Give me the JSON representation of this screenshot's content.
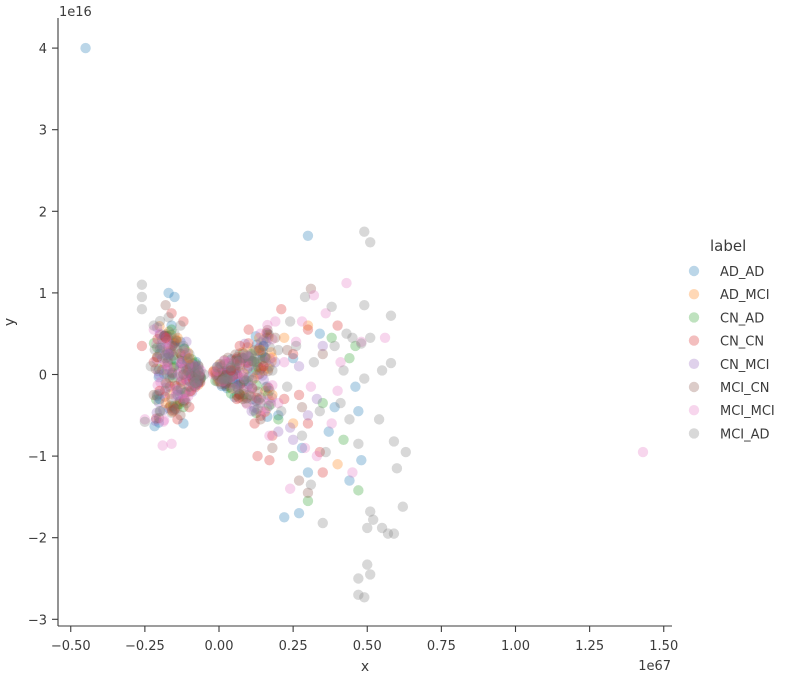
{
  "chart_data": {
    "type": "scatter",
    "xlabel": "x",
    "ylabel": "y",
    "x_offset_label": "1e67",
    "y_offset_label": "1e16",
    "xlim": [
      -0.55,
      1.52
    ],
    "ylim": [
      -3.05,
      4.3
    ],
    "x_ticks": [
      -0.5,
      -0.25,
      0.0,
      0.25,
      0.5,
      0.75,
      1.0,
      1.25,
      1.5
    ],
    "x_tick_labels": [
      "−0.50",
      "−0.25",
      "0.00",
      "0.25",
      "0.50",
      "0.75",
      "1.00",
      "1.25",
      "1.50"
    ],
    "y_ticks": [
      -3,
      -2,
      -1,
      0,
      1,
      2,
      3,
      4
    ],
    "y_tick_labels": [
      "−3",
      "−2",
      "−1",
      "0",
      "1",
      "2",
      "3",
      "4"
    ],
    "grid": false,
    "legend_title": "label",
    "legend_placement": "right",
    "marker_alpha": 0.3,
    "series": [
      {
        "name": "AD_AD",
        "color": "#1f77b4",
        "points": [
          [
            -0.45,
            4.0
          ],
          [
            0.3,
            1.7
          ],
          [
            0.48,
            -1.05
          ],
          [
            0.47,
            -0.45
          ],
          [
            0.27,
            -1.7
          ],
          [
            0.22,
            -1.75
          ],
          [
            -0.15,
            0.95
          ],
          [
            -0.17,
            1.0
          ],
          [
            0.46,
            -0.15
          ],
          [
            0.28,
            -0.9
          ],
          [
            0.37,
            -0.7
          ],
          [
            -0.13,
            0.4
          ],
          [
            0.34,
            0.5
          ],
          [
            0.44,
            -1.3
          ],
          [
            0.2,
            -0.5
          ],
          [
            -0.12,
            -0.6
          ],
          [
            0.25,
            0.2
          ],
          [
            -0.16,
            0.6
          ],
          [
            0.39,
            -0.4
          ],
          [
            0.15,
            0.35
          ],
          [
            -0.2,
            -0.3
          ],
          [
            0.3,
            -1.2
          ]
        ]
      },
      {
        "name": "AD_MCI",
        "color": "#ff7f0e",
        "points": [
          [
            -0.14,
            0.45
          ],
          [
            0.14,
            0.3
          ],
          [
            0.25,
            -0.6
          ],
          [
            -0.18,
            -0.35
          ],
          [
            0.3,
            0.6
          ],
          [
            0.4,
            -1.1
          ],
          [
            -0.1,
            0.2
          ],
          [
            0.18,
            -0.25
          ],
          [
            0.22,
            0.45
          ]
        ]
      },
      {
        "name": "CN_AD",
        "color": "#2ca02c",
        "points": [
          [
            0.47,
            -1.42
          ],
          [
            0.46,
            0.35
          ],
          [
            0.3,
            -1.55
          ],
          [
            0.25,
            -1.0
          ],
          [
            0.38,
            0.45
          ],
          [
            0.35,
            -0.35
          ],
          [
            0.42,
            -0.8
          ],
          [
            -0.16,
            0.55
          ],
          [
            0.2,
            -0.55
          ],
          [
            0.44,
            0.2
          ],
          [
            -0.12,
            -0.4
          ]
        ]
      },
      {
        "name": "CN_CN",
        "color": "#d62728",
        "points": [
          [
            -0.26,
            0.35
          ],
          [
            0.21,
            0.8
          ],
          [
            0.3,
            0.55
          ],
          [
            0.34,
            -0.95
          ],
          [
            -0.16,
            0.75
          ],
          [
            -0.14,
            -0.55
          ],
          [
            0.1,
            0.55
          ],
          [
            0.12,
            -0.6
          ],
          [
            0.18,
            -0.75
          ],
          [
            0.07,
            0.35
          ],
          [
            0.25,
            0.25
          ],
          [
            -0.2,
            -0.2
          ],
          [
            0.17,
            -1.05
          ],
          [
            0.4,
            0.6
          ],
          [
            0.13,
            -1.0
          ],
          [
            -0.12,
            0.65
          ],
          [
            0.22,
            -0.3
          ],
          [
            0.06,
            -0.3
          ],
          [
            -0.18,
            0.45
          ],
          [
            0.27,
            -0.25
          ],
          [
            0.35,
            -1.2
          ],
          [
            0.15,
            0.1
          ],
          [
            -0.22,
            0.15
          ],
          [
            -0.1,
            -0.4
          ],
          [
            0.3,
            -0.6
          ],
          [
            0.04,
            0.05
          ]
        ]
      },
      {
        "name": "CN_MCI",
        "color": "#9467bd",
        "points": [
          [
            -0.17,
            0.25
          ],
          [
            0.2,
            -0.7
          ],
          [
            0.27,
            0.1
          ],
          [
            0.33,
            -0.3
          ],
          [
            -0.14,
            -0.25
          ],
          [
            0.16,
            0.4
          ],
          [
            0.24,
            -0.65
          ],
          [
            -0.11,
            0.4
          ],
          [
            0.35,
            0.35
          ],
          [
            0.3,
            -0.5
          ],
          [
            -0.2,
            0.5
          ],
          [
            0.11,
            -0.45
          ],
          [
            0.19,
            0.15
          ],
          [
            0.25,
            -0.8
          ]
        ]
      },
      {
        "name": "MCI_CN",
        "color": "#8c564b",
        "points": [
          [
            0.31,
            1.05
          ],
          [
            0.27,
            -1.3
          ],
          [
            -0.18,
            0.85
          ],
          [
            0.18,
            -0.9
          ],
          [
            0.23,
            0.3
          ],
          [
            -0.13,
            -0.5
          ],
          [
            0.35,
            0.25
          ],
          [
            0.28,
            -0.4
          ],
          [
            0.14,
            -0.55
          ],
          [
            -0.22,
            -0.25
          ],
          [
            0.19,
            0.45
          ],
          [
            0.08,
            -0.3
          ],
          [
            -0.15,
            0.35
          ],
          [
            0.3,
            -1.45
          ]
        ]
      },
      {
        "name": "MCI_MCI",
        "color": "#e377c2",
        "points": [
          [
            1.43,
            -0.95
          ],
          [
            0.43,
            1.12
          ],
          [
            0.32,
            0.97
          ],
          [
            0.29,
            -0.9
          ],
          [
            0.24,
            -1.4
          ],
          [
            0.48,
            0.4
          ],
          [
            -0.19,
            -0.87
          ],
          [
            -0.16,
            -0.85
          ],
          [
            0.14,
            0.5
          ],
          [
            0.2,
            -0.35
          ],
          [
            0.38,
            -0.6
          ],
          [
            0.45,
            -1.2
          ],
          [
            0.56,
            0.45
          ],
          [
            0.09,
            0.25
          ],
          [
            0.26,
            0.4
          ],
          [
            -0.22,
            0.55
          ],
          [
            0.41,
            0.15
          ],
          [
            -0.12,
            -0.3
          ],
          [
            0.33,
            -1.0
          ],
          [
            0.22,
            0.15
          ],
          [
            0.36,
            0.75
          ],
          [
            0.17,
            -0.75
          ],
          [
            -0.25,
            -0.55
          ],
          [
            0.11,
            -0.15
          ],
          [
            0.28,
            0.65
          ],
          [
            0.4,
            -0.2
          ],
          [
            0.31,
            -0.15
          ],
          [
            0.19,
            0.65
          ]
        ]
      },
      {
        "name": "MCI_AD",
        "color": "#7f7f7f",
        "points": [
          [
            0.49,
            1.75
          ],
          [
            0.51,
            1.62
          ],
          [
            0.47,
            -2.5
          ],
          [
            0.47,
            -2.7
          ],
          [
            0.49,
            -2.73
          ],
          [
            0.51,
            -2.45
          ],
          [
            0.5,
            -2.33
          ],
          [
            0.5,
            -1.88
          ],
          [
            0.51,
            -1.68
          ],
          [
            0.52,
            -1.78
          ],
          [
            0.55,
            -1.88
          ],
          [
            0.57,
            -1.95
          ],
          [
            0.59,
            -1.95
          ],
          [
            0.62,
            -1.62
          ],
          [
            0.6,
            -1.15
          ],
          [
            0.63,
            -0.95
          ],
          [
            0.59,
            -0.82
          ],
          [
            0.54,
            -0.55
          ],
          [
            0.55,
            0.05
          ],
          [
            0.49,
            0.85
          ],
          [
            0.58,
            0.72
          ],
          [
            0.58,
            0.14
          ],
          [
            0.51,
            0.45
          ],
          [
            0.45,
            0.45
          ],
          [
            0.48,
            0.38
          ],
          [
            0.42,
            0.05
          ],
          [
            0.49,
            -0.05
          ],
          [
            0.47,
            -0.85
          ],
          [
            0.44,
            -0.55
          ],
          [
            0.38,
            0.83
          ],
          [
            0.35,
            -1.82
          ],
          [
            0.31,
            -1.35
          ],
          [
            0.29,
            0.95
          ],
          [
            0.24,
            0.65
          ],
          [
            0.2,
            0.3
          ],
          [
            0.17,
            -0.2
          ],
          [
            -0.26,
            1.1
          ],
          [
            -0.26,
            0.95
          ],
          [
            -0.26,
            0.8
          ],
          [
            -0.25,
            -0.58
          ],
          [
            -0.23,
            0.1
          ],
          [
            -0.22,
            0.6
          ],
          [
            -0.21,
            -0.25
          ],
          [
            -0.2,
            0.3
          ],
          [
            -0.2,
            -0.45
          ],
          [
            -0.18,
            0.2
          ],
          [
            -0.18,
            -0.1
          ],
          [
            -0.17,
            0.7
          ],
          [
            -0.16,
            -0.3
          ],
          [
            -0.15,
            0.5
          ],
          [
            -0.14,
            0.3
          ],
          [
            -0.14,
            -0.2
          ],
          [
            -0.13,
            0.6
          ],
          [
            -0.12,
            0.0
          ],
          [
            -0.12,
            0.35
          ],
          [
            -0.11,
            -0.35
          ],
          [
            -0.1,
            0.25
          ],
          [
            -0.1,
            -0.15
          ],
          [
            -0.09,
            0.1
          ],
          [
            -0.08,
            -0.1
          ],
          [
            -0.07,
            0.05
          ],
          [
            -0.05,
            0.0
          ],
          [
            0.02,
            -0.05
          ],
          [
            0.04,
            0.1
          ],
          [
            0.06,
            -0.15
          ],
          [
            0.08,
            0.2
          ],
          [
            0.1,
            -0.25
          ],
          [
            0.12,
            0.3
          ],
          [
            0.14,
            -0.35
          ],
          [
            0.16,
            0.2
          ],
          [
            0.18,
            0.05
          ],
          [
            0.21,
            -0.45
          ],
          [
            0.23,
            -0.15
          ],
          [
            0.26,
            0.35
          ],
          [
            0.28,
            -0.75
          ],
          [
            0.32,
            0.15
          ],
          [
            0.34,
            -0.45
          ],
          [
            0.36,
            -0.95
          ],
          [
            0.39,
            0.35
          ],
          [
            0.41,
            -0.35
          ],
          [
            0.43,
            0.5
          ]
        ]
      }
    ]
  }
}
